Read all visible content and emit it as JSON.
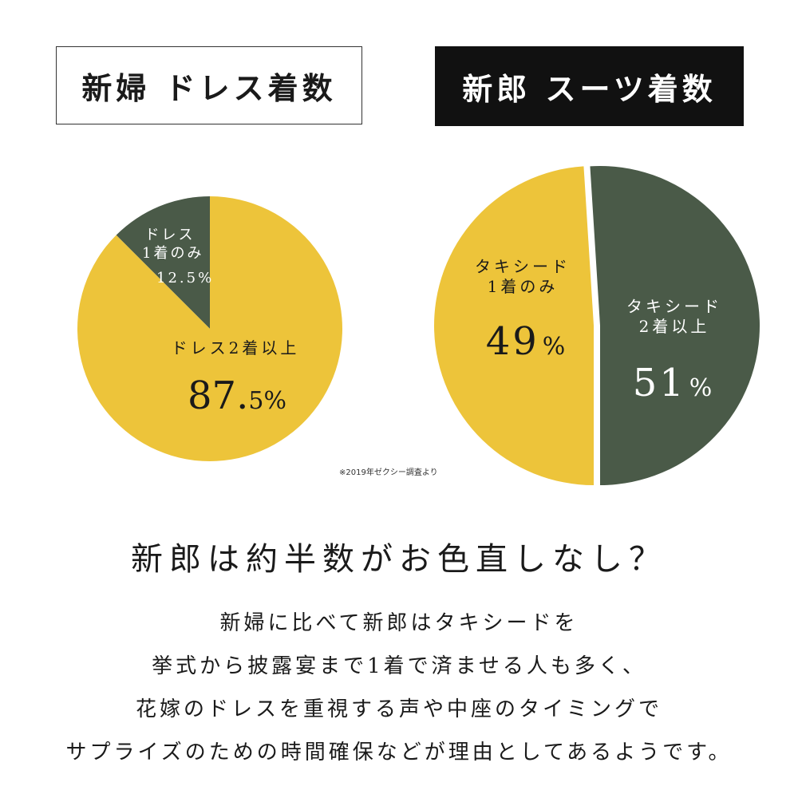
{
  "titles": {
    "bride": "新婦 ドレス着数",
    "groom": "新郎 スーツ着数"
  },
  "colors": {
    "yellow": "#EDC43A",
    "green": "#4A5A48",
    "black": "#111111"
  },
  "chart_data": [
    {
      "type": "pie",
      "title": "新婦 ドレス着数",
      "slices": [
        {
          "label_lines": [
            "ドレス",
            "1着のみ"
          ],
          "value": 12.5,
          "value_text": "12.5%",
          "color": "#4A5A48"
        },
        {
          "label_lines": [
            "ドレス2着以上"
          ],
          "value": 87.5,
          "value_text_int": "87.",
          "value_text_dec": "5",
          "value_text_unit": "%",
          "color": "#EDC43A"
        }
      ]
    },
    {
      "type": "pie",
      "title": "新郎 スーツ着数",
      "slices": [
        {
          "label_lines": [
            "タキシード",
            "1着のみ"
          ],
          "value": 49,
          "value_text_num": "49",
          "value_text_unit": "%",
          "color": "#EDC43A"
        },
        {
          "label_lines": [
            "タキシード",
            "2着以上"
          ],
          "value": 51,
          "value_text_num": "51",
          "value_text_unit": "%",
          "color": "#4A5A48"
        }
      ]
    }
  ],
  "source_note": "※2019年ゼクシー調査より",
  "headline": "新郎は約半数がお色直しなし？",
  "body_lines": [
    "新婦に比べて新郎はタキシードを",
    "挙式から披露宴まで1着で済ませる人も多く、",
    "花嫁のドレスを重視する声や中座のタイミングで",
    "サプライズのための時間確保などが理由としてあるようです。"
  ]
}
